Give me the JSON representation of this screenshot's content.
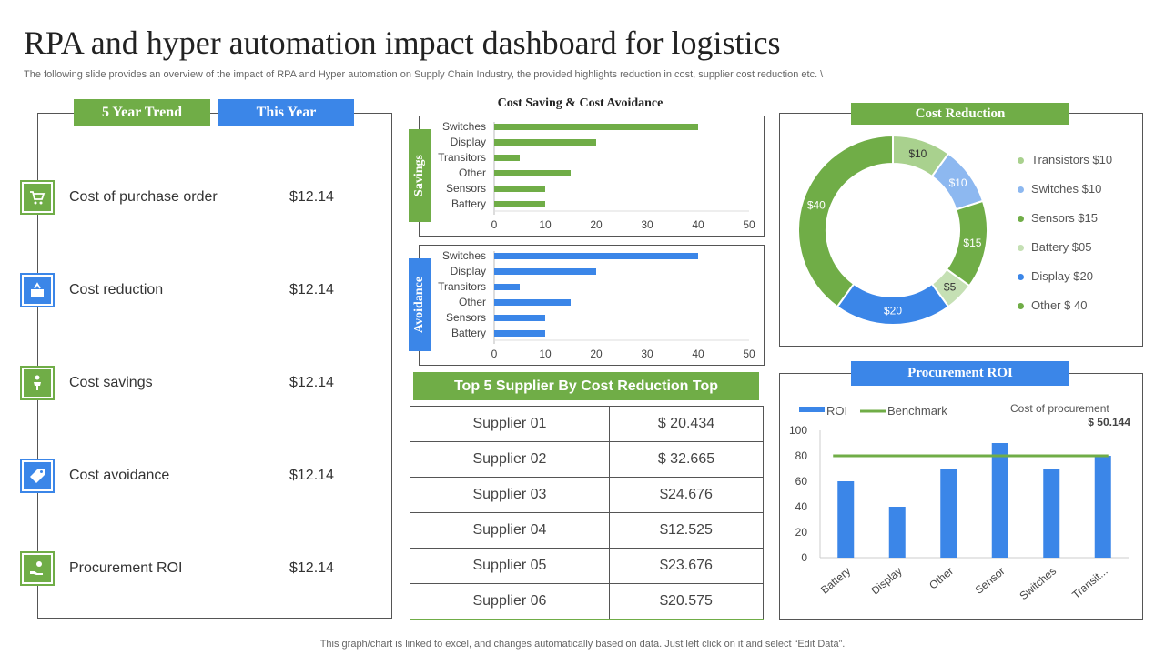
{
  "header": {
    "title": "RPA and hyper automation impact dashboard for logistics",
    "subtitle": "The following slide provides an overview of the impact of RPA and Hyper automation  on Supply Chain Industry, the provided highlights reduction in cost, supplier cost reduction etc. \\",
    "footer": "This graph/chart is linked to excel,  and changes automatically based on data. Just left click on it and select “Edit Data”."
  },
  "trend_panel": {
    "tab_five_year": "5 Year Trend",
    "tab_this_year": "This Year",
    "metrics": [
      {
        "label": "Cost of purchase order",
        "value": "$12.14",
        "icon": "cart-icon",
        "color": "#70ad47"
      },
      {
        "label": "Cost reduction",
        "value": "$12.14",
        "icon": "reduction-icon",
        "color": "#3b86e8"
      },
      {
        "label": "Cost savings",
        "value": "$12.14",
        "icon": "person-savings-icon",
        "color": "#70ad47"
      },
      {
        "label": "Cost avoidance",
        "value": "$12.14",
        "icon": "tag-icon",
        "color": "#3b86e8"
      },
      {
        "label": "Procurement ROI",
        "value": "$12.14",
        "icon": "hand-coin-icon",
        "color": "#70ad47"
      }
    ]
  },
  "supplier_table": {
    "title": "Top 5 Supplier By Cost Reduction Top",
    "rows": [
      {
        "name": "Supplier 01",
        "value": "$ 20.434"
      },
      {
        "name": "Supplier 02",
        "value": "$ 32.665"
      },
      {
        "name": "Supplier 03",
        "value": "$24.676"
      },
      {
        "name": "Supplier 04",
        "value": "$12.525"
      },
      {
        "name": "Supplier 05",
        "value": "$23.676"
      },
      {
        "name": "Supplier 06",
        "value": "$20.575"
      }
    ]
  },
  "colors": {
    "green": "#70ad47",
    "blue": "#3b86e8",
    "light_green": "#a9d18e",
    "light_blue": "#8db8f0"
  },
  "chart_data": [
    {
      "id": "savings",
      "type": "bar",
      "orientation": "horizontal",
      "title": "Cost Saving & Cost Avoidance",
      "side_label": "Savings",
      "categories": [
        "Switches",
        "Display",
        "Transitors",
        "Other",
        "Sensors",
        "Battery"
      ],
      "values": [
        40,
        20,
        5,
        15,
        10,
        10
      ],
      "xlim": [
        0,
        50
      ],
      "ticks": [
        0,
        10,
        20,
        30,
        40,
        50
      ],
      "color": "#70ad47"
    },
    {
      "id": "avoidance",
      "type": "bar",
      "orientation": "horizontal",
      "side_label": "Avoidance",
      "categories": [
        "Switches",
        "Display",
        "Transitors",
        "Other",
        "Sensors",
        "Battery"
      ],
      "values": [
        40,
        20,
        5,
        15,
        10,
        10
      ],
      "xlim": [
        0,
        50
      ],
      "ticks": [
        0,
        10,
        20,
        30,
        40,
        50
      ],
      "color": "#3b86e8"
    },
    {
      "id": "cost-reduction",
      "type": "pie",
      "title": "Cost Reduction",
      "slices": [
        {
          "label": "$10",
          "legend": "Transistors $10",
          "value": 10,
          "color": "#a9d18e"
        },
        {
          "label": "$10",
          "legend": "Switches $10",
          "value": 10,
          "color": "#8db8f0"
        },
        {
          "label": "$15",
          "legend": "Sensors $15",
          "value": 15,
          "color": "#70ad47"
        },
        {
          "label": "$5",
          "legend": "Battery $05",
          "value": 5,
          "color": "#c5e0b4"
        },
        {
          "label": "$20",
          "legend": "Display $20",
          "value": 20,
          "color": "#3b86e8"
        },
        {
          "label": "$40",
          "legend": "Other $ 40",
          "value": 40,
          "color": "#70ad47"
        }
      ]
    },
    {
      "id": "procurement-roi",
      "type": "bar",
      "title": "Procurement  ROI",
      "categories": [
        "Battery",
        "Display",
        "Other",
        "Sensor",
        "Switches",
        "Transit..."
      ],
      "series": [
        {
          "name": "ROI",
          "values": [
            60,
            40,
            70,
            90,
            70,
            80
          ],
          "color": "#3b86e8"
        }
      ],
      "benchmark": {
        "name": "Benchmark",
        "value": 80,
        "color": "#70ad47"
      },
      "ylim": [
        0,
        100
      ],
      "ticks": [
        0,
        20,
        40,
        60,
        80,
        100
      ],
      "annotation": {
        "label": "Cost of procurement",
        "value": "$ 50.144"
      }
    }
  ]
}
